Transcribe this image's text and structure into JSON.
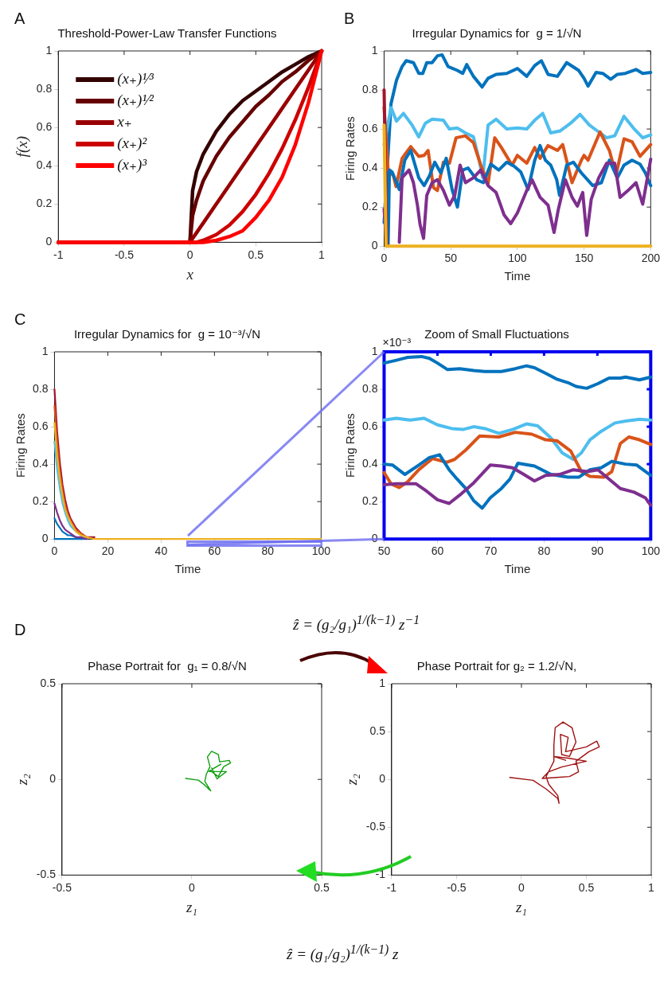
{
  "chart_data": [
    {
      "type": "line",
      "title": "Threshold-Power-Law Transfer Functions",
      "xlabel": "x",
      "ylabel": "f(x)",
      "annotations": [
        "A"
      ],
      "legend": "top left",
      "xlim": [
        -1,
        1
      ],
      "ylim": [
        0,
        1
      ],
      "xticks": [
        -1,
        -0.5,
        0,
        0.5,
        1
      ],
      "yticks": [
        0,
        0.2,
        0.4,
        0.6,
        0.8,
        1
      ],
      "x": [
        -1,
        0,
        0.02,
        0.05,
        0.1,
        0.2,
        0.3,
        0.4,
        0.5,
        0.6,
        0.7,
        0.8,
        0.9,
        1
      ],
      "series": [
        {
          "name": "(x₊)¹⁄³",
          "color": "#330000",
          "values": [
            0,
            0,
            0.27,
            0.37,
            0.46,
            0.58,
            0.67,
            0.74,
            0.79,
            0.84,
            0.89,
            0.93,
            0.97,
            1
          ]
        },
        {
          "name": "(x₊)¹⁄²",
          "color": "#660000",
          "values": [
            0,
            0,
            0.14,
            0.22,
            0.32,
            0.45,
            0.55,
            0.63,
            0.71,
            0.77,
            0.84,
            0.89,
            0.95,
            1
          ]
        },
        {
          "name": "x₊",
          "color": "#990000",
          "values": [
            0,
            0,
            0.02,
            0.05,
            0.1,
            0.2,
            0.3,
            0.4,
            0.5,
            0.6,
            0.7,
            0.8,
            0.9,
            1
          ]
        },
        {
          "name": "(x₊)²",
          "color": "#cc0000",
          "values": [
            0,
            0,
            0,
            0,
            0.01,
            0.04,
            0.09,
            0.16,
            0.25,
            0.36,
            0.49,
            0.64,
            0.81,
            1
          ]
        },
        {
          "name": "(x₊)³",
          "color": "#ff0000",
          "values": [
            0,
            0,
            0,
            0,
            0,
            0.01,
            0.03,
            0.06,
            0.13,
            0.22,
            0.34,
            0.51,
            0.73,
            1
          ]
        }
      ]
    },
    {
      "type": "line",
      "title": "Irregular Dynamics for  g = 1/√N",
      "xlabel": "Time",
      "ylabel": "Firing Rates",
      "annotations": [
        "B"
      ],
      "xlim": [
        0,
        200
      ],
      "ylim": [
        0,
        1
      ],
      "xticks": [
        0,
        50,
        100,
        150,
        200
      ],
      "yticks": [
        0,
        0.2,
        0.4,
        0.6,
        0.8,
        1
      ],
      "series": [
        {
          "color": "#0072bd",
          "x": [
            0,
            5.2,
            9.3,
            13.5,
            16.6,
            22,
            26,
            29,
            32,
            36,
            40,
            43.5,
            48,
            55,
            59,
            62,
            67,
            73.5,
            78,
            84,
            92,
            100,
            107,
            113,
            118,
            123,
            130,
            137,
            146,
            150,
            153,
            159,
            164,
            170,
            175,
            181,
            189,
            194,
            200
          ],
          "values": [
            0.12,
            0.73,
            0.85,
            0.92,
            0.95,
            0.94,
            0.885,
            0.885,
            0.94,
            0.94,
            0.975,
            0.98,
            0.92,
            0.9,
            0.885,
            0.93,
            0.87,
            0.815,
            0.86,
            0.88,
            0.885,
            0.91,
            0.87,
            0.925,
            0.95,
            0.88,
            0.87,
            0.94,
            0.9,
            0.86,
            0.82,
            0.89,
            0.885,
            0.855,
            0.88,
            0.885,
            0.905,
            0.885,
            0.89
          ]
        },
        {
          "color": "#4dbeee",
          "x": [
            0,
            5.2,
            9.3,
            14.5,
            21,
            26,
            31,
            36,
            44.5,
            49,
            55,
            61,
            67,
            71,
            74,
            78,
            84,
            92,
            100,
            107,
            113,
            119,
            125,
            132,
            140,
            147,
            154,
            161,
            167,
            173,
            180,
            187,
            194,
            200
          ],
          "values": [
            0.52,
            0.71,
            0.64,
            0.68,
            0.62,
            0.56,
            0.63,
            0.65,
            0.645,
            0.6,
            0.605,
            0.58,
            0.56,
            0.45,
            0.35,
            0.62,
            0.65,
            0.6,
            0.605,
            0.6,
            0.645,
            0.68,
            0.58,
            0.59,
            0.63,
            0.675,
            0.62,
            0.585,
            0.555,
            0.565,
            0.665,
            0.605,
            0.555,
            0.57
          ]
        },
        {
          "color": "#d95319",
          "x": [
            0,
            3,
            7,
            9,
            13.5,
            20,
            26,
            30,
            33,
            37,
            40,
            44.5,
            49,
            54,
            61,
            67,
            72.5,
            78,
            83,
            88,
            96,
            100,
            107,
            113,
            117,
            123,
            130,
            134,
            141,
            148,
            150,
            153,
            162,
            169,
            174,
            180,
            186,
            192,
            200
          ],
          "values": [
            0.71,
            0.39,
            0.36,
            0.305,
            0.45,
            0.51,
            0.46,
            0.465,
            0.49,
            0.3,
            0.285,
            0.43,
            0.425,
            0.555,
            0.565,
            0.53,
            0.415,
            0.32,
            0.555,
            0.505,
            0.415,
            0.465,
            0.425,
            0.505,
            0.45,
            0.515,
            0.49,
            0.52,
            0.325,
            0.44,
            0.465,
            0.44,
            0.585,
            0.49,
            0.365,
            0.55,
            0.535,
            0.46,
            0.52
          ]
        },
        {
          "color": "#0072bd",
          "x": [
            3,
            4,
            6,
            11.4,
            15.5,
            20,
            26,
            30,
            34,
            38,
            42.5,
            46.6,
            51,
            55,
            59,
            63,
            69.5,
            74.5,
            80,
            86,
            92,
            97.5,
            102.5,
            108,
            113,
            117,
            121,
            125,
            129.5,
            131.6,
            137,
            142,
            148,
            156.5,
            163,
            169,
            175,
            180,
            186,
            192,
            196,
            200
          ],
          "values": [
            0,
            0.39,
            0.38,
            0.29,
            0.44,
            0.49,
            0.35,
            0.31,
            0.36,
            0.43,
            0.375,
            0.45,
            0.29,
            0.2,
            0.39,
            0.4,
            0.34,
            0.325,
            0.42,
            0.39,
            0.43,
            0.41,
            0.38,
            0.29,
            0.44,
            0.515,
            0.44,
            0.415,
            0.34,
            0.26,
            0.415,
            0.43,
            0.375,
            0.31,
            0.325,
            0.44,
            0.35,
            0.415,
            0.44,
            0.42,
            0.375,
            0.31
          ]
        },
        {
          "color": "#7e2f8e",
          "x": [
            0,
            2,
            10,
            11.4,
            13.5,
            18.7,
            22,
            25,
            27,
            29.6,
            32,
            36,
            40,
            44.5,
            49,
            53,
            57,
            61,
            67,
            72.5,
            78,
            84,
            90,
            95,
            100,
            107,
            111,
            117,
            123,
            127.5,
            130.6,
            136,
            141,
            145,
            149,
            152,
            155.4,
            161,
            167,
            173,
            177,
            183,
            189,
            194,
            200
          ],
          "values": [
            0.19,
            0,
            null,
            0.02,
            0.35,
            0.39,
            0.325,
            0.21,
            0.11,
            0.04,
            0.26,
            0.325,
            0.34,
            0.285,
            0.21,
            0.26,
            0.415,
            0.325,
            0.35,
            0.39,
            0.31,
            0.275,
            0.16,
            0.115,
            0.17,
            0.285,
            0.34,
            0.25,
            0.21,
            0.07,
            0.185,
            0.34,
            0.25,
            0.205,
            0.275,
            0.055,
            0.24,
            0.35,
            0.425,
            0.425,
            0.25,
            0.285,
            0.325,
            0.215,
            0.445
          ]
        },
        {
          "color": "#a2142f",
          "x": [
            0,
            2
          ],
          "values": [
            0.8,
            0
          ]
        },
        {
          "color": "#edb120",
          "x": [
            0,
            1.5,
            200
          ],
          "values": [
            0.62,
            0,
            0
          ]
        }
      ]
    },
    {
      "type": "line",
      "title": "Irregular Dynamics for  g = 10⁻³/√N",
      "xlabel": "Time",
      "ylabel": "Firing Rates",
      "annotations": [
        "C"
      ],
      "xlim": [
        0,
        100
      ],
      "ylim": [
        0,
        1
      ],
      "xticks": [
        0,
        20,
        40,
        60,
        80,
        100
      ],
      "yticks": [
        0,
        0.2,
        0.4,
        0.6,
        0.8,
        1
      ],
      "x": [
        0,
        1,
        2,
        3,
        4,
        5,
        6,
        8,
        10,
        12,
        15,
        20,
        50,
        100
      ],
      "series": [
        {
          "color": "#0072bd",
          "x": [
            0,
            10
          ],
          "values": [
            0,
            0
          ]
        },
        {
          "color": "#0072bd",
          "values": [
            0.11,
            0.08,
            0.06,
            0.04,
            0.03,
            0.02,
            0.02,
            0.01,
            0,
            0,
            null,
            null,
            null,
            null
          ]
        },
        {
          "color": "#7e2f8e",
          "values": [
            0.19,
            0.14,
            0.1,
            0.07,
            0.05,
            0.04,
            0.03,
            0.01,
            0.01,
            0,
            null,
            null,
            null,
            null
          ]
        },
        {
          "color": "#4dbeee",
          "values": [
            0.52,
            0.37,
            0.27,
            0.19,
            0.14,
            0.1,
            0.07,
            0.04,
            0.02,
            0.01,
            null,
            null,
            null,
            null
          ]
        },
        {
          "color": "#a2142f",
          "values": [
            0.8,
            0.57,
            0.41,
            0.29,
            0.21,
            0.15,
            0.11,
            0.06,
            0.03,
            0.01,
            0.01,
            null,
            null,
            null
          ]
        },
        {
          "color": "#d95319",
          "values": [
            0.71,
            0.51,
            0.36,
            0.26,
            0.18,
            0.13,
            0.1,
            0.05,
            0.03,
            0.01,
            null,
            null,
            null,
            null
          ]
        },
        {
          "color": "#edb120",
          "values": [
            0.62,
            0.44,
            0.32,
            0.23,
            0.16,
            0.12,
            0.09,
            0.04,
            0.02,
            0.01,
            0,
            0,
            0,
            0
          ]
        }
      ]
    },
    {
      "type": "line",
      "title": "Zoom of Small Fluctuations",
      "xlabel": "Time",
      "ylabel": "Firing Rates",
      "annotations": [
        "×10⁻³"
      ],
      "xlim": [
        50,
        100
      ],
      "ylim": [
        0,
        1
      ],
      "xticks": [
        50,
        60,
        70,
        80,
        90,
        100
      ],
      "yticks": [
        0,
        0.2,
        0.4,
        0.6,
        0.8,
        1
      ],
      "series": [
        {
          "color": "#0072bd",
          "x": [
            50,
            52.3,
            54.4,
            57,
            58.5,
            60,
            61.9,
            64.2,
            66.8,
            68.9,
            72,
            74.6,
            76.7,
            78.2,
            80.3,
            82.3,
            84.5,
            86,
            88,
            90.1,
            92.2,
            94.3,
            95.3,
            97.9,
            100
          ],
          "values": [
            0.94,
            0.955,
            0.97,
            0.975,
            0.965,
            0.94,
            0.905,
            0.91,
            0.9,
            0.895,
            0.895,
            0.91,
            0.925,
            0.915,
            0.885,
            0.855,
            0.835,
            0.815,
            0.805,
            0.83,
            0.86,
            0.86,
            0.865,
            0.85,
            0.865
          ]
        },
        {
          "color": "#4dbeee",
          "x": [
            50,
            52.3,
            54.9,
            57.5,
            60,
            62.7,
            64.8,
            66.8,
            68.9,
            71.5,
            74.1,
            76.7,
            78.8,
            81.3,
            83.4,
            85.5,
            87,
            88.6,
            90.7,
            93.3,
            95.3,
            97.9,
            100
          ],
          "values": [
            0.635,
            0.645,
            0.635,
            0.645,
            0.61,
            0.59,
            0.585,
            0.6,
            0.59,
            0.565,
            0.585,
            0.615,
            0.605,
            0.54,
            0.46,
            0.425,
            0.46,
            0.53,
            0.575,
            0.62,
            0.63,
            0.64,
            0.635
          ]
        },
        {
          "color": "#d95319",
          "x": [
            50,
            51.3,
            52.8,
            54.4,
            56.5,
            59.1,
            61.7,
            63.2,
            65.3,
            67.9,
            71.5,
            74.6,
            77.7,
            80.3,
            82.4,
            85,
            87,
            88.6,
            91.2,
            92.7,
            94.3,
            95.9,
            97.9,
            100
          ],
          "values": [
            0.355,
            0.295,
            0.275,
            0.305,
            0.37,
            0.43,
            0.41,
            0.425,
            0.475,
            0.55,
            0.545,
            0.57,
            0.56,
            0.53,
            0.525,
            0.47,
            0.36,
            0.335,
            0.33,
            0.36,
            0.51,
            0.545,
            0.53,
            0.505
          ]
        },
        {
          "color": "#0072bd",
          "x": [
            50,
            51.6,
            53.9,
            56.5,
            58.5,
            60.4,
            62.2,
            63.7,
            65.3,
            66.8,
            68.4,
            69.9,
            72,
            73.6,
            75.1,
            78.2,
            81.3,
            84.5,
            86.5,
            88.6,
            90.7,
            92.7,
            95.3,
            97.4,
            100
          ],
          "values": [
            0.4,
            0.395,
            0.345,
            0.395,
            0.435,
            0.45,
            0.37,
            0.32,
            0.27,
            0.205,
            0.165,
            0.22,
            0.27,
            0.32,
            0.405,
            0.39,
            0.345,
            0.33,
            0.33,
            0.37,
            0.38,
            0.415,
            0.4,
            0.395,
            0.34
          ]
        },
        {
          "color": "#7e2f8e",
          "x": [
            50,
            52.3,
            56,
            58,
            60,
            62.2,
            64.2,
            66.8,
            69.9,
            72,
            74.1,
            76.2,
            78.2,
            80.3,
            82.9,
            85.5,
            88.1,
            90.1,
            92.2,
            94.3,
            96.9,
            99,
            100
          ],
          "values": [
            0.29,
            0.295,
            0.295,
            0.255,
            0.21,
            0.19,
            0.235,
            0.3,
            0.395,
            0.39,
            0.38,
            0.345,
            0.31,
            0.34,
            0.345,
            0.37,
            0.36,
            0.37,
            0.32,
            0.27,
            0.25,
            0.22,
            0.18
          ]
        }
      ]
    },
    {
      "type": "line",
      "title": "Phase Portrait for  g₁ = 0.8/√N",
      "xlabel": "z₁",
      "ylabel": "z₂",
      "annotations": [
        "D",
        "ẑ = (g₂/g₁)$^{1/(k−1)}$ z$^{−1}$"
      ],
      "xlim": [
        -0.5,
        0.5
      ],
      "ylim": [
        -0.5,
        0.5
      ],
      "xticks": [
        -0.5,
        0,
        0.5
      ],
      "yticks": [
        -0.5,
        0,
        0.5
      ],
      "series": [
        {
          "color": "#10a010",
          "x": [
            -0.024,
            0.025,
            0.05,
            0.073,
            0.05,
            0.056,
            0.07,
            0.06,
            0.076,
            0.102,
            0.107,
            0.144,
            0.149,
            0.123,
            0.102,
            0.07,
            0.112,
            0.087,
            0.066,
            0.133,
            0.097,
            0.076
          ],
          "values": [
            0.005,
            -0.004,
            -0.03,
            -0.06,
            -0.01,
            0.028,
            0.067,
            0.118,
            0.147,
            0.13,
            0.092,
            0.099,
            0.086,
            0.067,
            0.015,
            0.047,
            0.079,
            0.06,
            0.041,
            0.041,
            0.003,
            0.06
          ]
        }
      ]
    },
    {
      "type": "line",
      "title": "Phase Portrait for g₂ = 1.2/√N,",
      "xlabel": "z₁",
      "ylabel": "z₂",
      "annotations": [
        "ẑ = (g₁/g₂)$^{1/(k−1)}$ z"
      ],
      "xlim": [
        -1,
        1
      ],
      "ylim": [
        -1,
        1
      ],
      "xticks": [
        -1,
        -0.5,
        0,
        0.5,
        1
      ],
      "yticks": [
        -1,
        -0.5,
        0,
        0.5,
        1
      ],
      "series": [
        {
          "color": "#a01010",
          "x": [
            -0.09,
            0.09,
            0.19,
            0.28,
            0.29,
            0.28,
            0.21,
            0.19,
            0.22,
            0.25,
            0.25,
            0.26,
            0.32,
            0.39,
            0.42,
            0.37,
            0.31,
            0.3,
            0.36,
            0.34,
            0.5,
            0.58,
            0.6,
            0.52,
            0.42,
            0.44,
            0.37,
            0.27,
            0.16,
            0.21,
            0.31,
            0.5,
            0.37,
            0.25,
            0.34
          ],
          "values": [
            0.02,
            -0.01,
            -0.1,
            -0.2,
            -0.25,
            -0.17,
            -0.05,
            0.03,
            0.11,
            0.19,
            0.36,
            0.54,
            0.6,
            0.54,
            0.39,
            0.24,
            0.26,
            0.47,
            0.44,
            0.29,
            0.34,
            0.4,
            0.34,
            0.29,
            0.19,
            0.08,
            0.03,
            0.02,
            0.01,
            0.08,
            0.13,
            0.19,
            0.22,
            0.24,
            0.2
          ]
        }
      ]
    }
  ]
}
